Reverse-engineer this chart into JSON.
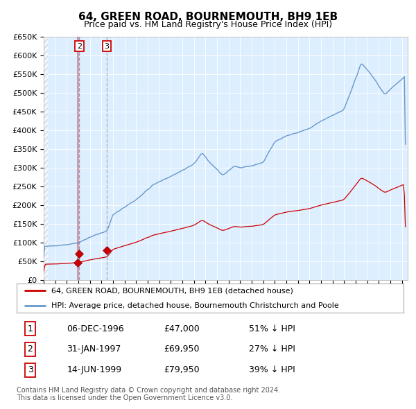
{
  "title": "64, GREEN ROAD, BOURNEMOUTH, BH9 1EB",
  "subtitle": "Price paid vs. HM Land Registry's House Price Index (HPI)",
  "legend_line1": "64, GREEN ROAD, BOURNEMOUTH, BH9 1EB (detached house)",
  "legend_line2": "HPI: Average price, detached house, Bournemouth Christchurch and Poole",
  "footnote1": "Contains HM Land Registry data © Crown copyright and database right 2024.",
  "footnote2": "This data is licensed under the Open Government Licence v3.0.",
  "sale_color": "#cc0000",
  "hpi_color": "#6699cc",
  "plot_bg_color": "#ddeeff",
  "ylim": [
    0,
    650000
  ],
  "yticks": [
    0,
    50000,
    100000,
    150000,
    200000,
    250000,
    300000,
    350000,
    400000,
    450000,
    500000,
    550000,
    600000,
    650000
  ],
  "ytick_labels": [
    "£0",
    "£50K",
    "£100K",
    "£150K",
    "£200K",
    "£250K",
    "£300K",
    "£350K",
    "£400K",
    "£450K",
    "£500K",
    "£550K",
    "£600K",
    "£650K"
  ],
  "xlim_start": 1994.0,
  "xlim_end": 2025.5,
  "sales": [
    {
      "num": 1,
      "date": 1996.93,
      "price": 47000
    },
    {
      "num": 2,
      "date": 1997.08,
      "price": 69950
    },
    {
      "num": 3,
      "date": 1999.45,
      "price": 79950
    }
  ],
  "table_data": [
    [
      "1",
      "06-DEC-1996",
      "£47,000",
      "51% ↓ HPI"
    ],
    [
      "2",
      "31-JAN-1997",
      "£69,950",
      "27% ↓ HPI"
    ],
    [
      "3",
      "14-JUN-1999",
      "£79,950",
      "39% ↓ HPI"
    ]
  ],
  "hpi_anchors": [
    [
      1994.0,
      90000
    ],
    [
      1995.0,
      92000
    ],
    [
      1996.0,
      95000
    ],
    [
      1997.0,
      100000
    ],
    [
      1998.0,
      115000
    ],
    [
      1999.5,
      132000
    ],
    [
      2000.0,
      175000
    ],
    [
      2001.0,
      195000
    ],
    [
      2002.0,
      215000
    ],
    [
      2003.5,
      255000
    ],
    [
      2004.5,
      270000
    ],
    [
      2005.5,
      285000
    ],
    [
      2007.0,
      310000
    ],
    [
      2007.7,
      340000
    ],
    [
      2008.5,
      310000
    ],
    [
      2009.5,
      280000
    ],
    [
      2010.5,
      305000
    ],
    [
      2011.0,
      300000
    ],
    [
      2012.0,
      305000
    ],
    [
      2013.0,
      315000
    ],
    [
      2014.0,
      370000
    ],
    [
      2015.0,
      385000
    ],
    [
      2016.0,
      395000
    ],
    [
      2017.0,
      405000
    ],
    [
      2018.0,
      425000
    ],
    [
      2019.0,
      440000
    ],
    [
      2020.0,
      455000
    ],
    [
      2021.5,
      580000
    ],
    [
      2022.2,
      555000
    ],
    [
      2022.8,
      530000
    ],
    [
      2023.5,
      495000
    ],
    [
      2024.0,
      510000
    ],
    [
      2025.3,
      545000
    ]
  ]
}
